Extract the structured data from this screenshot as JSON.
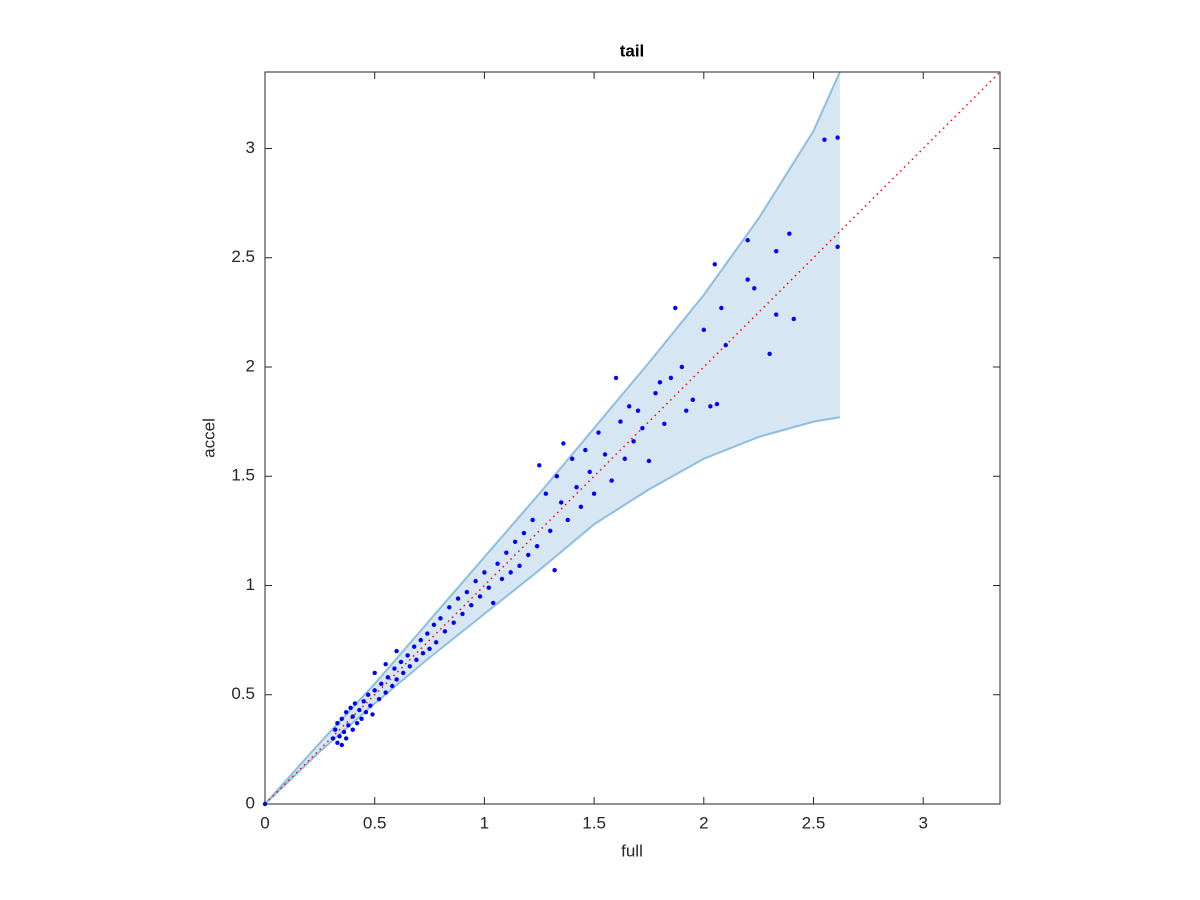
{
  "chart_data": {
    "type": "scatter",
    "title": "tail",
    "xlabel": "full",
    "ylabel": "accel",
    "xlim": [
      0,
      3.35
    ],
    "ylim": [
      0,
      3.35
    ],
    "xticks": [
      0,
      0.5,
      1,
      1.5,
      2,
      2.5,
      3
    ],
    "yticks": [
      0,
      0.5,
      1,
      1.5,
      2,
      2.5,
      3
    ],
    "band": {
      "x": [
        0,
        0.25,
        0.5,
        0.75,
        1,
        1.25,
        1.5,
        1.75,
        2,
        2.25,
        2.5,
        2.62
      ],
      "upper": [
        0,
        0.28,
        0.55,
        0.84,
        1.13,
        1.42,
        1.72,
        2.02,
        2.33,
        2.68,
        3.08,
        3.35
      ],
      "lower": [
        0,
        0.24,
        0.46,
        0.67,
        0.87,
        1.07,
        1.28,
        1.44,
        1.58,
        1.68,
        1.75,
        1.77
      ],
      "color": "#d6e6f3",
      "edge_color": "#8dbfe0"
    },
    "reference_line": {
      "x": [
        0,
        3.35
      ],
      "y": [
        0,
        3.35
      ],
      "color": "#ff0000"
    },
    "points": {
      "color": "#0000ff",
      "x": [
        0,
        0.31,
        0.32,
        0.33,
        0.33,
        0.34,
        0.35,
        0.35,
        0.36,
        0.37,
        0.37,
        0.38,
        0.39,
        0.4,
        0.4,
        0.41,
        0.42,
        0.43,
        0.44,
        0.45,
        0.46,
        0.47,
        0.48,
        0.49,
        0.5,
        0.52,
        0.53,
        0.55,
        0.56,
        0.58,
        0.59,
        0.6,
        0.62,
        0.63,
        0.65,
        0.66,
        0.68,
        0.69,
        0.71,
        0.72,
        0.74,
        0.75,
        0.77,
        0.78,
        0.8,
        0.55,
        0.5,
        0.6,
        0.82,
        0.84,
        0.86,
        0.88,
        0.9,
        0.92,
        0.94,
        0.96,
        0.98,
        1.0,
        1.02,
        1.04,
        1.06,
        1.08,
        1.1,
        1.12,
        1.14,
        1.16,
        1.18,
        1.2,
        1.22,
        1.24,
        1.25,
        1.28,
        1.3,
        1.32,
        1.33,
        1.35,
        1.36,
        1.38,
        1.4,
        1.42,
        1.44,
        1.46,
        1.48,
        1.5,
        1.52,
        1.55,
        1.58,
        1.6,
        1.62,
        1.64,
        1.66,
        1.68,
        1.7,
        1.72,
        1.75,
        1.78,
        1.8,
        1.82,
        1.85,
        1.87,
        1.9,
        1.92,
        1.95,
        2.0,
        2.03,
        2.05,
        2.06,
        2.08,
        2.1,
        2.2,
        2.2,
        2.23,
        2.3,
        2.33,
        2.33,
        2.39,
        2.41,
        2.55,
        2.61,
        2.61
      ],
      "y": [
        0,
        0.3,
        0.34,
        0.28,
        0.37,
        0.31,
        0.39,
        0.27,
        0.33,
        0.42,
        0.3,
        0.36,
        0.44,
        0.34,
        0.4,
        0.46,
        0.37,
        0.43,
        0.39,
        0.47,
        0.42,
        0.5,
        0.45,
        0.41,
        0.52,
        0.48,
        0.55,
        0.51,
        0.58,
        0.54,
        0.62,
        0.57,
        0.65,
        0.6,
        0.68,
        0.63,
        0.72,
        0.66,
        0.75,
        0.69,
        0.78,
        0.71,
        0.82,
        0.74,
        0.85,
        0.64,
        0.6,
        0.7,
        0.79,
        0.9,
        0.83,
        0.94,
        0.87,
        0.97,
        0.91,
        1.02,
        0.95,
        1.06,
        0.99,
        0.92,
        1.1,
        1.03,
        1.15,
        1.06,
        1.2,
        1.09,
        1.24,
        1.14,
        1.3,
        1.18,
        1.55,
        1.42,
        1.25,
        1.07,
        1.5,
        1.38,
        1.65,
        1.3,
        1.58,
        1.45,
        1.36,
        1.62,
        1.52,
        1.42,
        1.7,
        1.6,
        1.48,
        1.95,
        1.75,
        1.58,
        1.82,
        1.66,
        1.8,
        1.72,
        1.57,
        1.88,
        1.93,
        1.74,
        1.95,
        2.27,
        2.0,
        1.8,
        1.85,
        2.17,
        1.82,
        2.47,
        1.83,
        2.27,
        2.1,
        2.4,
        2.58,
        2.36,
        2.06,
        2.53,
        2.24,
        2.61,
        2.22,
        3.04,
        3.05,
        2.55
      ]
    }
  }
}
